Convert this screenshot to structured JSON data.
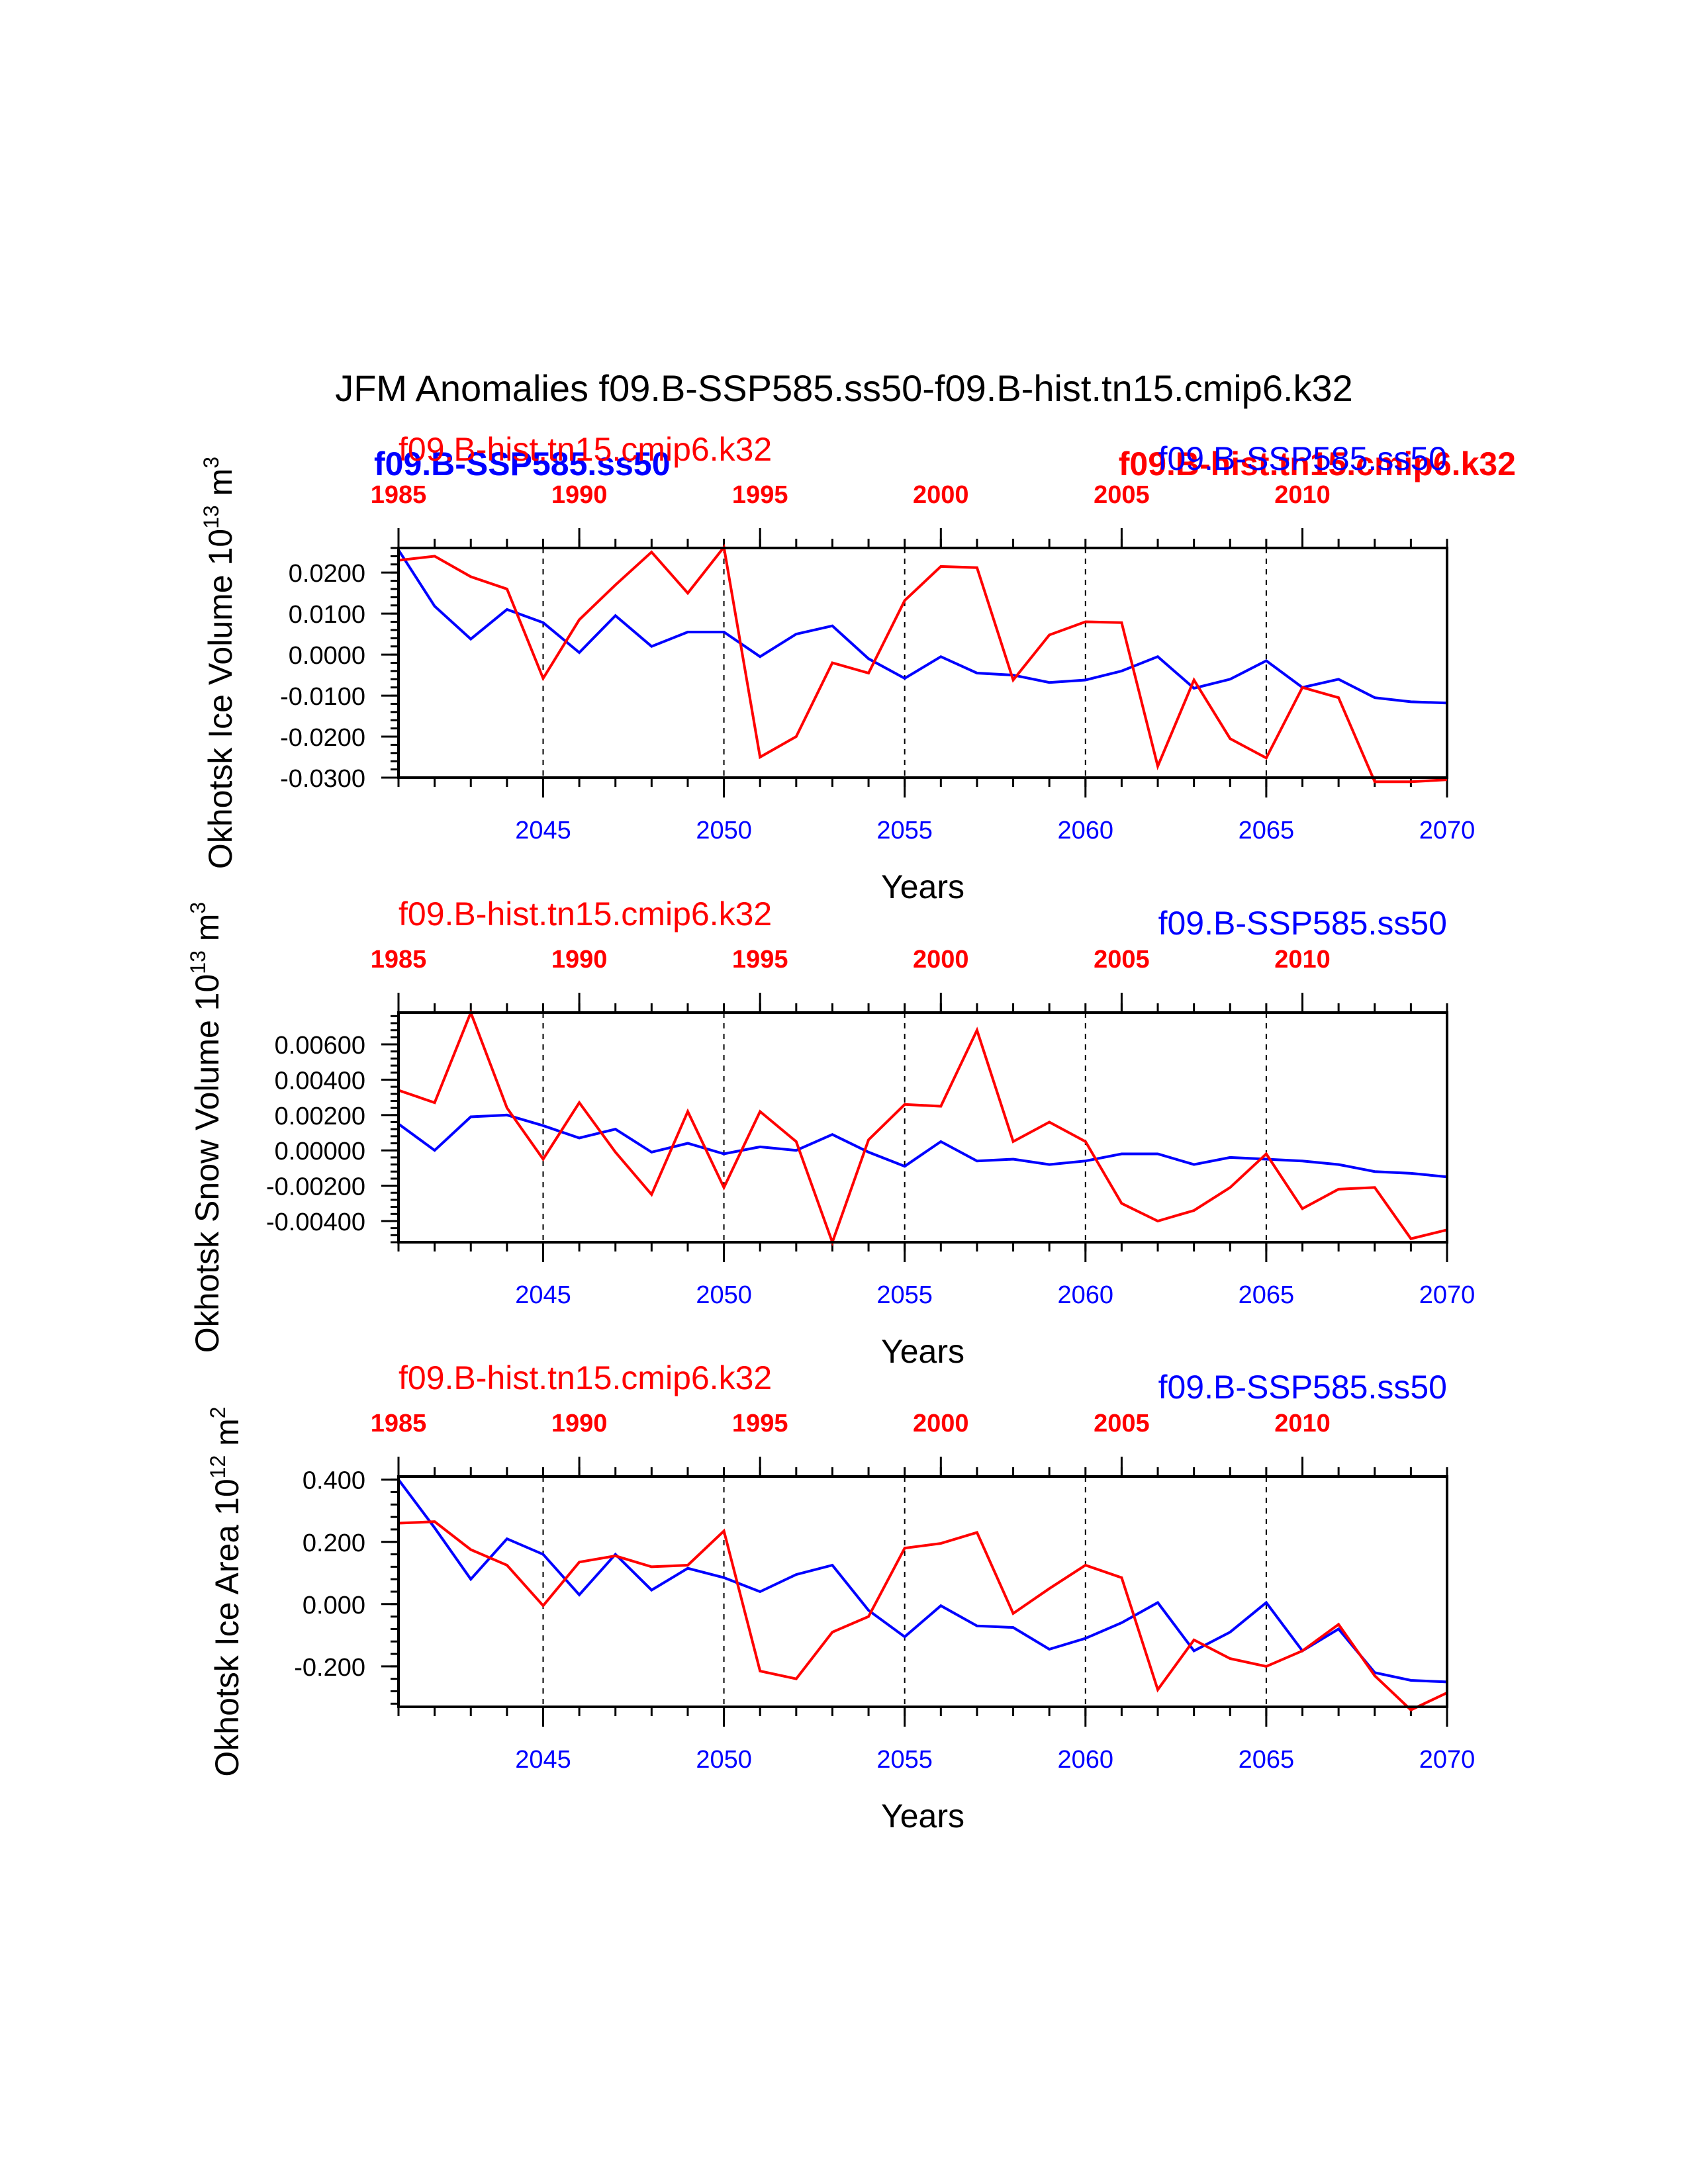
{
  "title": "JFM Anomalies f09.B-SSP585.ss50-f09.B-hist.tn15.cmip6.k32",
  "colors": {
    "ssp": "#0000ff",
    "hist": "#ff0000",
    "axis": "#000000"
  },
  "overlay_labels": {
    "ssp_left": "f09.B-SSP585.ss50",
    "hist_right": "f09.B-hist.tn15.cmip6.k32"
  },
  "chart_data": [
    {
      "type": "line",
      "title": "",
      "ylabel": "Okhotsk Ice Volume 10",
      "ylabel_exp": "13",
      "ylabel_unit": "m",
      "ylabel_unit_exp": "3",
      "xlabel": "Years",
      "legend_left": "f09.B-hist.tn15.cmip6.k32",
      "legend_right": "f09.B-SSP585.ss50",
      "ylim": [
        -0.03,
        0.026
      ],
      "yticks": [
        0.02,
        0.01,
        0.0,
        -0.01,
        -0.02,
        -0.03
      ],
      "ytick_labels": [
        "0.0200",
        "0.0100",
        "0.0000",
        "-0.0100",
        "-0.0200",
        "-0.0300"
      ],
      "bottom_axis": {
        "range": [
          2041,
          2070
        ],
        "ticks": [
          2045,
          2050,
          2055,
          2060,
          2065,
          2070
        ],
        "labels": [
          "2045",
          "2050",
          "2055",
          "2060",
          "2065",
          "2070"
        ]
      },
      "top_axis": {
        "range": [
          1985,
          2014
        ],
        "ticks": [
          1985,
          1990,
          1995,
          2000,
          2005,
          2010
        ],
        "labels": [
          "1985",
          "1990",
          "1995",
          "2000",
          "2005",
          "2010"
        ]
      },
      "grid_x": [
        2045,
        2050,
        2055,
        2060,
        2065
      ],
      "series": [
        {
          "name": "f09.B-SSP585.ss50",
          "axis": "bottom",
          "x": [
            2041,
            2042,
            2043,
            2044,
            2045,
            2046,
            2047,
            2048,
            2049,
            2050,
            2051,
            2052,
            2053,
            2054,
            2055,
            2056,
            2057,
            2058,
            2059,
            2060,
            2061,
            2062,
            2063,
            2064,
            2065,
            2066,
            2067,
            2068,
            2069,
            2070
          ],
          "values": [
            0.0255,
            0.0118,
            0.0038,
            0.011,
            0.0078,
            0.0005,
            0.0095,
            0.002,
            0.0055,
            0.0055,
            -0.0005,
            0.005,
            0.007,
            -0.001,
            -0.0058,
            -0.0005,
            -0.0045,
            -0.005,
            -0.0068,
            -0.0062,
            -0.004,
            -0.0005,
            -0.0082,
            -0.006,
            -0.0015,
            -0.008,
            -0.006,
            -0.0105,
            -0.0115,
            -0.0118
          ]
        },
        {
          "name": "f09.B-hist.tn15.cmip6.k32",
          "axis": "top",
          "x": [
            1985,
            1986,
            1987,
            1988,
            1989,
            1990,
            1991,
            1992,
            1993,
            1994,
            1995,
            1996,
            1997,
            1998,
            1999,
            2000,
            2001,
            2002,
            2003,
            2004,
            2005,
            2006,
            2007,
            2008,
            2009,
            2010,
            2011,
            2012,
            2013,
            2014
          ],
          "values": [
            0.023,
            0.024,
            0.019,
            0.016,
            -0.0058,
            0.0085,
            0.017,
            0.025,
            0.015,
            0.0262,
            -0.025,
            -0.02,
            -0.002,
            -0.0045,
            0.0132,
            0.0215,
            0.0212,
            -0.0062,
            0.0048,
            0.008,
            0.0078,
            -0.0272,
            -0.0062,
            -0.0205,
            -0.0252,
            -0.008,
            -0.0105,
            -0.031,
            -0.031,
            -0.0305
          ]
        }
      ]
    },
    {
      "type": "line",
      "title": "",
      "ylabel": "Okhotsk Snow Volume 10",
      "ylabel_exp": "13",
      "ylabel_unit": "m",
      "ylabel_unit_exp": "3",
      "xlabel": "Years",
      "legend_left": "f09.B-hist.tn15.cmip6.k32",
      "legend_right": "f09.B-SSP585.ss50",
      "ylim": [
        -0.0052,
        0.0078
      ],
      "yticks": [
        0.006,
        0.004,
        0.002,
        0.0,
        -0.002,
        -0.004
      ],
      "ytick_labels": [
        "0.00600",
        "0.00400",
        "0.00200",
        "0.00000",
        "-0.00200",
        "-0.00400"
      ],
      "bottom_axis": {
        "range": [
          2041,
          2070
        ],
        "ticks": [
          2045,
          2050,
          2055,
          2060,
          2065,
          2070
        ],
        "labels": [
          "2045",
          "2050",
          "2055",
          "2060",
          "2065",
          "2070"
        ]
      },
      "top_axis": {
        "range": [
          1985,
          2014
        ],
        "ticks": [
          1985,
          1990,
          1995,
          2000,
          2005,
          2010
        ],
        "labels": [
          "1985",
          "1990",
          "1995",
          "2000",
          "2005",
          "2010"
        ]
      },
      "grid_x": [
        2045,
        2050,
        2055,
        2060,
        2065
      ],
      "series": [
        {
          "name": "f09.B-SSP585.ss50",
          "axis": "bottom",
          "x": [
            2041,
            2042,
            2043,
            2044,
            2045,
            2046,
            2047,
            2048,
            2049,
            2050,
            2051,
            2052,
            2053,
            2054,
            2055,
            2056,
            2057,
            2058,
            2059,
            2060,
            2061,
            2062,
            2063,
            2064,
            2065,
            2066,
            2067,
            2068,
            2069,
            2070
          ],
          "values": [
            0.0015,
            0.0,
            0.0019,
            0.002,
            0.0014,
            0.0007,
            0.0012,
            -0.0001,
            0.0004,
            -0.0002,
            0.0002,
            0.0,
            0.0009,
            -0.0001,
            -0.0009,
            0.0005,
            -0.0006,
            -0.0005,
            -0.0008,
            -0.0006,
            -0.0002,
            -0.0002,
            -0.0008,
            -0.0004,
            -0.0005,
            -0.0006,
            -0.0008,
            -0.0012,
            -0.0013,
            -0.0015
          ]
        },
        {
          "name": "f09.B-hist.tn15.cmip6.k32",
          "axis": "top",
          "x": [
            1985,
            1986,
            1987,
            1988,
            1989,
            1990,
            1991,
            1992,
            1993,
            1994,
            1995,
            1996,
            1997,
            1998,
            1999,
            2000,
            2001,
            2002,
            2003,
            2004,
            2005,
            2006,
            2007,
            2008,
            2009,
            2010,
            2011,
            2012,
            2013,
            2014
          ],
          "values": [
            0.0034,
            0.0027,
            0.0078,
            0.0024,
            -0.0005,
            0.0027,
            -0.0001,
            -0.0025,
            0.0022,
            -0.0021,
            0.0022,
            0.0005,
            -0.0052,
            0.0006,
            0.0026,
            0.0025,
            0.0068,
            0.0005,
            0.0016,
            0.0005,
            -0.003,
            -0.004,
            -0.0034,
            -0.0021,
            -0.0002,
            -0.0033,
            -0.0022,
            -0.0021,
            -0.005,
            -0.0045
          ]
        }
      ]
    },
    {
      "type": "line",
      "title": "",
      "ylabel": "Okhotsk Ice Area 10",
      "ylabel_exp": "12",
      "ylabel_unit": "m",
      "ylabel_unit_exp": "2",
      "xlabel": "Years",
      "legend_left": "f09.B-hist.tn15.cmip6.k32",
      "legend_right": "f09.B-SSP585.ss50",
      "ylim": [
        -0.33,
        0.41
      ],
      "yticks": [
        0.4,
        0.2,
        0.0,
        -0.2
      ],
      "ytick_labels": [
        "0.400",
        "0.200",
        "0.000",
        "-0.200"
      ],
      "bottom_axis": {
        "range": [
          2041,
          2070
        ],
        "ticks": [
          2045,
          2050,
          2055,
          2060,
          2065,
          2070
        ],
        "labels": [
          "2045",
          "2050",
          "2055",
          "2060",
          "2065",
          "2070"
        ]
      },
      "top_axis": {
        "range": [
          1985,
          2014
        ],
        "ticks": [
          1985,
          1990,
          1995,
          2000,
          2005,
          2010
        ],
        "labels": [
          "1985",
          "1990",
          "1995",
          "2000",
          "2005",
          "2010"
        ]
      },
      "grid_x": [
        2045,
        2050,
        2055,
        2060,
        2065
      ],
      "series": [
        {
          "name": "f09.B-SSP585.ss50",
          "axis": "bottom",
          "x": [
            2041,
            2042,
            2043,
            2044,
            2045,
            2046,
            2047,
            2048,
            2049,
            2050,
            2051,
            2052,
            2053,
            2054,
            2055,
            2056,
            2057,
            2058,
            2059,
            2060,
            2061,
            2062,
            2063,
            2064,
            2065,
            2066,
            2067,
            2068,
            2069,
            2070
          ],
          "values": [
            0.4,
            0.245,
            0.08,
            0.21,
            0.16,
            0.03,
            0.16,
            0.045,
            0.115,
            0.085,
            0.04,
            0.095,
            0.125,
            -0.02,
            -0.105,
            -0.005,
            -0.07,
            -0.075,
            -0.145,
            -0.11,
            -0.06,
            0.005,
            -0.15,
            -0.09,
            0.005,
            -0.15,
            -0.08,
            -0.22,
            -0.245,
            -0.25
          ]
        },
        {
          "name": "f09.B-hist.tn15.cmip6.k32",
          "axis": "top",
          "x": [
            1985,
            1986,
            1987,
            1988,
            1989,
            1990,
            1991,
            1992,
            1993,
            1994,
            1995,
            1996,
            1997,
            1998,
            1999,
            2000,
            2001,
            2002,
            2003,
            2004,
            2005,
            2006,
            2007,
            2008,
            2009,
            2010,
            2011,
            2012,
            2013,
            2014
          ],
          "values": [
            0.26,
            0.265,
            0.175,
            0.125,
            -0.005,
            0.135,
            0.155,
            0.12,
            0.125,
            0.235,
            -0.215,
            -0.24,
            -0.09,
            -0.04,
            0.18,
            0.195,
            0.23,
            -0.03,
            0.05,
            0.125,
            0.085,
            -0.275,
            -0.115,
            -0.175,
            -0.2,
            -0.15,
            -0.065,
            -0.23,
            -0.34,
            -0.285
          ]
        }
      ]
    }
  ]
}
